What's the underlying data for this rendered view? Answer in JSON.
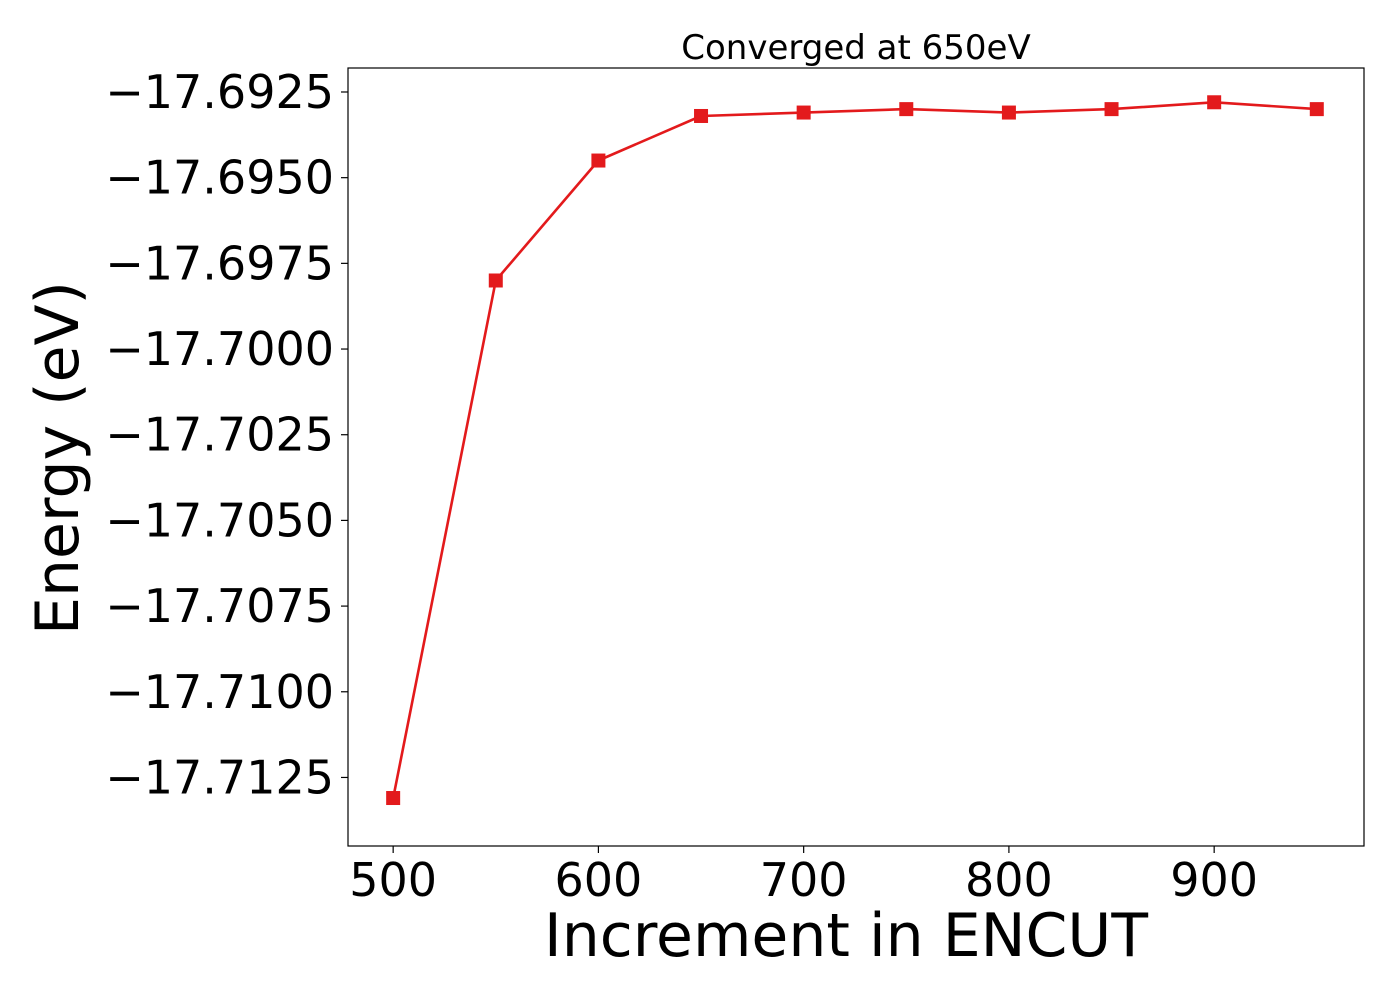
{
  "chart_data": {
    "type": "line",
    "title": "Converged at 650eV",
    "xlabel": "Increment in ENCUT",
    "ylabel": "Energy (eV)",
    "xlim": [
      478,
      973
    ],
    "ylim": [
      -17.7145,
      -17.6918
    ],
    "x_ticks": [
      500,
      600,
      700,
      800,
      900
    ],
    "x_tick_labels": [
      "500",
      "600",
      "700",
      "800",
      "900"
    ],
    "y_ticks": [
      -17.6925,
      -17.695,
      -17.6975,
      -17.7,
      -17.7025,
      -17.705,
      -17.7075,
      -17.71,
      -17.7125
    ],
    "y_tick_labels": [
      "−17.6925",
      "−17.6950",
      "−17.6975",
      "−17.7000",
      "−17.7025",
      "−17.7050",
      "−17.7075",
      "−17.7100",
      "−17.7125"
    ],
    "grid": false,
    "series": [
      {
        "color": "#e31a1c",
        "marker": "square",
        "x": [
          500,
          550,
          600,
          650,
          700,
          750,
          800,
          850,
          900,
          950
        ],
        "y": [
          -17.7131,
          -17.698,
          -17.6945,
          -17.6932,
          -17.6931,
          -17.693,
          -17.6931,
          -17.693,
          -17.6928,
          -17.693
        ]
      }
    ]
  }
}
